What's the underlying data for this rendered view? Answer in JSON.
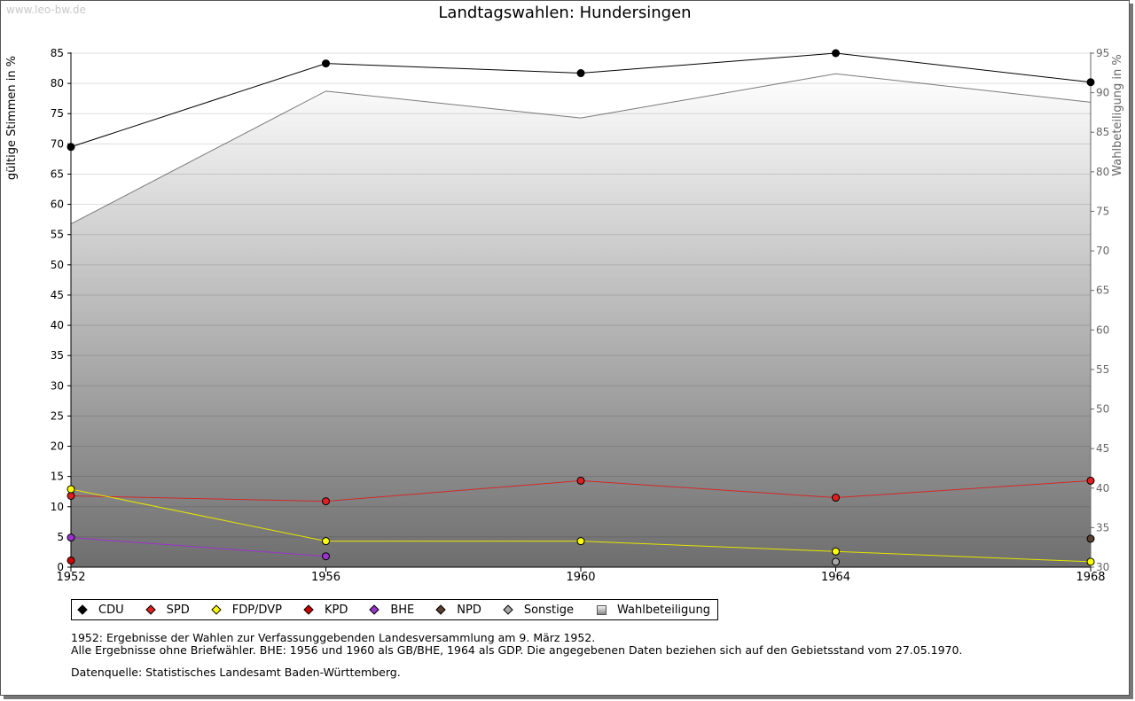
{
  "watermark": "www.leo-bw.de",
  "chart_data": {
    "type": "line",
    "title": "Landtagswahlen: Hundersingen",
    "x": [
      "1952",
      "1956",
      "1960",
      "1964",
      "1968"
    ],
    "ylabel": "gültige Stimmen in %",
    "ylabel_right": "Wahlbeteiligung in %",
    "ylim": [
      0,
      85
    ],
    "ylim_right": [
      30,
      95
    ],
    "yticks": [
      "0",
      "5",
      "10",
      "15",
      "20",
      "25",
      "30",
      "35",
      "40",
      "45",
      "50",
      "55",
      "60",
      "65",
      "70",
      "75",
      "80",
      "85"
    ],
    "yticks_right": [
      "30",
      "35",
      "40",
      "45",
      "50",
      "55",
      "60",
      "65",
      "70",
      "75",
      "80",
      "85",
      "90",
      "95"
    ],
    "grid": true,
    "legend_position": "bottom",
    "series": [
      {
        "name": "CDU",
        "color": "#000000",
        "marker": "#000000",
        "values": [
          69.5,
          83.3,
          81.7,
          85.0,
          80.2
        ]
      },
      {
        "name": "SPD",
        "color": "#d22828",
        "marker": "#e02020",
        "values": [
          11.8,
          10.9,
          14.3,
          11.5,
          14.3
        ]
      },
      {
        "name": "FDP/DVP",
        "color": "#e6e600",
        "marker": "#ffff00",
        "values": [
          12.9,
          4.3,
          4.3,
          2.6,
          0.9
        ]
      },
      {
        "name": "KPD",
        "color": "#b00000",
        "marker": "#cc0000",
        "values": [
          1.1,
          null,
          null,
          null,
          null
        ]
      },
      {
        "name": "BHE",
        "color": "#9933cc",
        "marker": "#9933cc",
        "values": [
          4.9,
          1.8,
          null,
          null,
          null
        ]
      },
      {
        "name": "NPD",
        "color": "#5a4030",
        "marker": "#5a4030",
        "values": [
          null,
          null,
          null,
          null,
          4.7
        ]
      },
      {
        "name": "Sonstige",
        "color": "#aaaaaa",
        "marker": "#aaaaaa",
        "values": [
          null,
          null,
          null,
          0.9,
          null
        ]
      }
    ],
    "turnout": {
      "name": "Wahlbeteiligung",
      "axis": "right",
      "type": "area",
      "values": [
        73.4,
        90.2,
        86.8,
        92.4,
        88.8
      ]
    }
  },
  "notes": {
    "line1": "1952: Ergebnisse der Wahlen zur Verfassunggebenden Landesversammlung am 9. März 1952.",
    "line2": "Alle Ergebnisse ohne Briefwähler. BHE: 1956 und 1960 als GB/BHE, 1964 als GDP. Die angegebenen Daten beziehen sich auf den Gebietsstand vom 27.05.1970.",
    "line3": "Datenquelle: Statistisches Landesamt Baden-Württemberg."
  }
}
